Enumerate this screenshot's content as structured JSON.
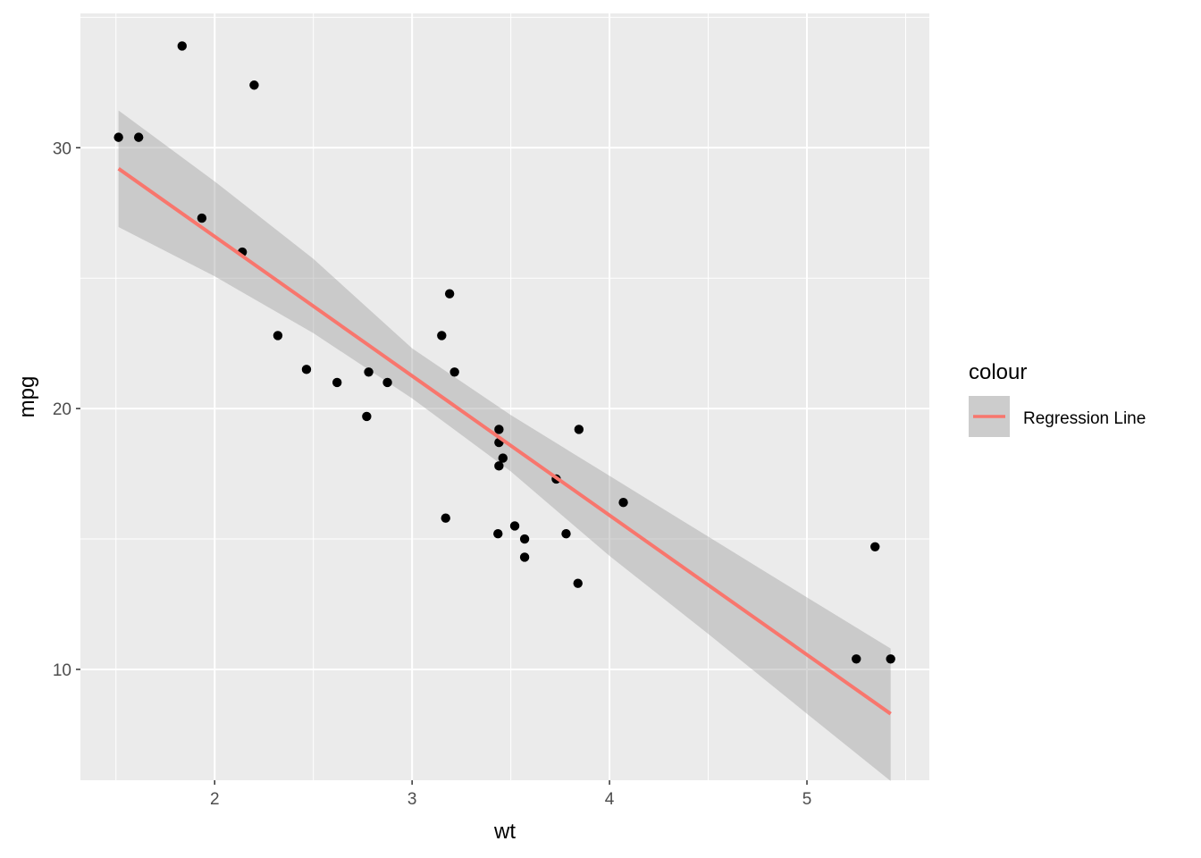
{
  "chart_data": {
    "type": "scatter",
    "title": "",
    "xlabel": "wt",
    "ylabel": "mpg",
    "xlim": [
      1.32,
      5.62
    ],
    "ylim": [
      5.75,
      35.15
    ],
    "x_ticks": [
      2,
      3,
      4,
      5
    ],
    "x_tick_labels": [
      "2",
      "3",
      "4",
      "5"
    ],
    "y_ticks": [
      10,
      20,
      30
    ],
    "y_tick_labels": [
      "10",
      "20",
      "30"
    ],
    "grid": true,
    "background_color": "#ebebeb",
    "points_color": "#000000",
    "points": [
      {
        "x": 2.62,
        "y": 21.0
      },
      {
        "x": 2.875,
        "y": 21.0
      },
      {
        "x": 2.32,
        "y": 22.8
      },
      {
        "x": 3.215,
        "y": 21.4
      },
      {
        "x": 3.44,
        "y": 18.7
      },
      {
        "x": 3.46,
        "y": 18.1
      },
      {
        "x": 3.57,
        "y": 14.3
      },
      {
        "x": 3.19,
        "y": 24.4
      },
      {
        "x": 3.15,
        "y": 22.8
      },
      {
        "x": 3.44,
        "y": 19.2
      },
      {
        "x": 3.44,
        "y": 17.8
      },
      {
        "x": 4.07,
        "y": 16.4
      },
      {
        "x": 3.73,
        "y": 17.3
      },
      {
        "x": 3.78,
        "y": 15.2
      },
      {
        "x": 5.25,
        "y": 10.4
      },
      {
        "x": 5.424,
        "y": 10.4
      },
      {
        "x": 5.345,
        "y": 14.7
      },
      {
        "x": 2.2,
        "y": 32.4
      },
      {
        "x": 1.615,
        "y": 30.4
      },
      {
        "x": 1.835,
        "y": 33.9
      },
      {
        "x": 2.465,
        "y": 21.5
      },
      {
        "x": 3.52,
        "y": 15.5
      },
      {
        "x": 3.435,
        "y": 15.2
      },
      {
        "x": 3.84,
        "y": 13.3
      },
      {
        "x": 3.845,
        "y": 19.2
      },
      {
        "x": 1.935,
        "y": 27.3
      },
      {
        "x": 2.14,
        "y": 26.0
      },
      {
        "x": 1.513,
        "y": 30.4
      },
      {
        "x": 3.17,
        "y": 15.8
      },
      {
        "x": 2.77,
        "y": 19.7
      },
      {
        "x": 3.57,
        "y": 15.0
      },
      {
        "x": 2.78,
        "y": 21.4
      }
    ],
    "regression": {
      "name": "Regression Line",
      "color": "#f8766d",
      "band_color": "#999999",
      "intercept": 37.285,
      "slope": -5.3445,
      "x_range": [
        1.513,
        5.424
      ],
      "se_band": [
        {
          "x": 1.513,
          "lower": 26.96,
          "upper": 31.43
        },
        {
          "x": 2.0,
          "lower": 25.07,
          "upper": 28.71
        },
        {
          "x": 2.5,
          "lower": 22.89,
          "upper": 25.74
        },
        {
          "x": 3.0,
          "lower": 20.39,
          "upper": 22.31
        },
        {
          "x": 3.5,
          "lower": 17.59,
          "upper": 19.75
        },
        {
          "x": 4.0,
          "lower": 14.35,
          "upper": 17.42
        },
        {
          "x": 4.5,
          "lower": 11.36,
          "upper": 15.09
        },
        {
          "x": 5.0,
          "lower": 8.3,
          "upper": 12.76
        },
        {
          "x": 5.424,
          "lower": 5.72,
          "upper": 10.8
        }
      ]
    },
    "legend": {
      "title": "colour",
      "label": "Regression Line",
      "placement": "right"
    }
  }
}
